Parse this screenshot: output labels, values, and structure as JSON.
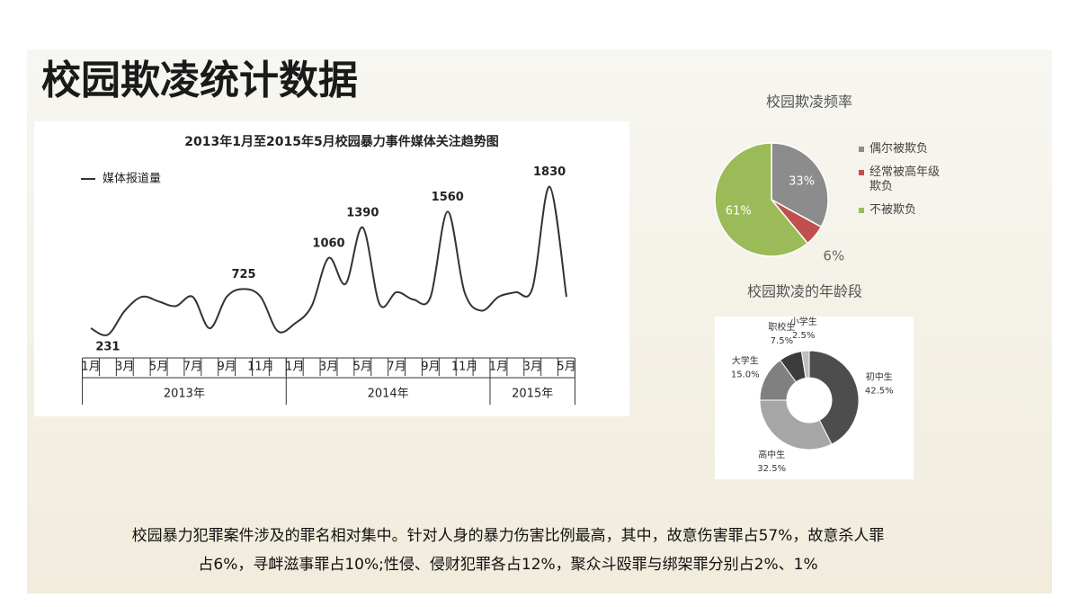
{
  "title": "校园欺凌统计数据",
  "paragraph": [
    "校园暴力犯罪案件涉及的罪名相对集中。针对人身的暴力伤害比例最高，其中，故意伤害罪占57%，故意杀人罪",
    "占6%，寻衅滋事罪占10%;性侵、侵财犯罪各占12%，聚众斗殴罪与绑架罪分别占2%、1%"
  ],
  "chart_data": [
    {
      "type": "line",
      "title": "2013年1月至2015年5月校园暴力事件媒体关注趋势图",
      "categories": [
        "1月",
        null,
        "3月",
        null,
        "5月",
        null,
        "7月",
        null,
        "9月",
        null,
        "11月",
        null,
        "1月",
        null,
        "3月",
        null,
        "5月",
        null,
        "7月",
        null,
        "9月",
        null,
        "11月",
        null,
        "1月",
        null,
        "3月",
        null,
        "5月"
      ],
      "groups": [
        "2013年",
        "2014年",
        "2015年"
      ],
      "series": [
        {
          "name": "媒体报道量",
          "color": "#333333",
          "values": [
            300,
            231,
            490,
            640,
            590,
            540,
            640,
            300,
            640,
            725,
            640,
            270,
            350,
            540,
            1060,
            780,
            1390,
            560,
            690,
            610,
            640,
            1560,
            690,
            490,
            640,
            690,
            735,
            1830,
            640
          ],
          "value_labels": [
            null,
            "231",
            null,
            null,
            null,
            null,
            null,
            null,
            null,
            "725",
            null,
            null,
            null,
            null,
            "1060",
            null,
            "1390",
            null,
            null,
            null,
            null,
            "1560",
            null,
            null,
            null,
            null,
            null,
            "1830",
            null
          ]
        }
      ],
      "ylim": [
        0,
        2000
      ]
    },
    {
      "type": "pie",
      "title": "校园欺凌频率",
      "categories": [
        "偶尔被欺负",
        "经常被高年级欺负",
        "不被欺负"
      ],
      "values": [
        33,
        6,
        61
      ],
      "value_labels": [
        "33%",
        "6%",
        "61%"
      ],
      "colors": [
        "#8c8c8c",
        "#c0504d",
        "#9bbb59"
      ]
    },
    {
      "type": "donut",
      "title": "校园欺凌的年龄段",
      "categories": [
        "初中生",
        "高中生",
        "大学生",
        "职校生",
        "小学生"
      ],
      "values": [
        42.5,
        32.5,
        15.0,
        7.5,
        2.5
      ],
      "value_labels": [
        "42.5%",
        "32.5%",
        "15.0%",
        "7.5%",
        "2.5%"
      ],
      "colors": [
        "#4d4d4d",
        "#a6a6a6",
        "#808080",
        "#3c3c3c",
        "#bfbfbf"
      ]
    }
  ]
}
